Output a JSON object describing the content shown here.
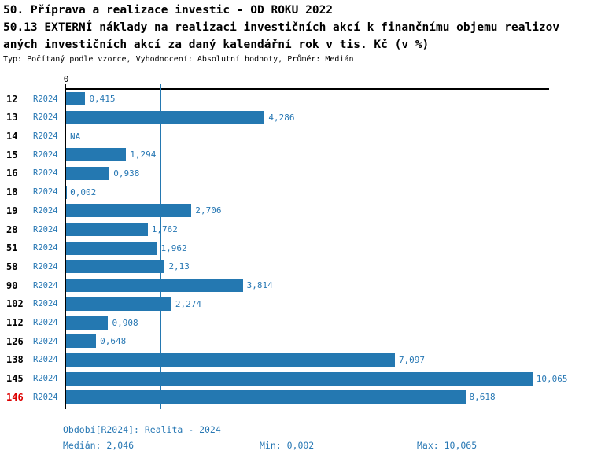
{
  "header": {
    "title_line1": "50. Příprava a realizace investic - OD ROKU 2022",
    "title_line2": "50.13 EXTERNÍ náklady na realizaci investičních akcí k finančnímu objemu realizov",
    "title_line3": "aných investičních akcí za daný kalendářní rok v tis. Kč (v %)",
    "meta_line": "Typ: Počítaný podle vzorce, Vyhodnocení: Absolutní hodnoty, Průměr: Medián"
  },
  "chart_data": {
    "type": "bar",
    "orientation": "horizontal",
    "categories": [
      "12",
      "13",
      "14",
      "15",
      "16",
      "18",
      "19",
      "28",
      "51",
      "58",
      "90",
      "102",
      "112",
      "126",
      "138",
      "145",
      "146"
    ],
    "series_name": "R2024",
    "values": [
      0.415,
      4.286,
      null,
      1.294,
      0.938,
      0.002,
      2.706,
      1.762,
      1.962,
      2.13,
      3.814,
      2.274,
      0.908,
      0.648,
      7.097,
      10.065,
      8.618
    ],
    "value_labels": [
      "0,415",
      "4,286",
      "NA",
      "1,294",
      "0,938",
      "0,002",
      "2,706",
      "1,762",
      "1,962",
      "2,13",
      "3,814",
      "2,274",
      "0,908",
      "0,648",
      "7,097",
      "10,065",
      "8,618"
    ],
    "na_label": "NA",
    "highlighted_category": "146",
    "axis_zero_label": "0",
    "xlim": [
      0,
      10.46
    ],
    "median_value": 2.046,
    "grid": false,
    "legend": false,
    "colors": {
      "bar": "#2478b1",
      "blue_text": "#2878b4",
      "highlight": "#dd0000",
      "axis": "#000000"
    }
  },
  "footer": {
    "period_line": "Období[R2024]: Realita - 2024",
    "median_label": "Medián: 2,046",
    "min_label": "Min: 0,002",
    "max_label": "Max: 10,065"
  }
}
